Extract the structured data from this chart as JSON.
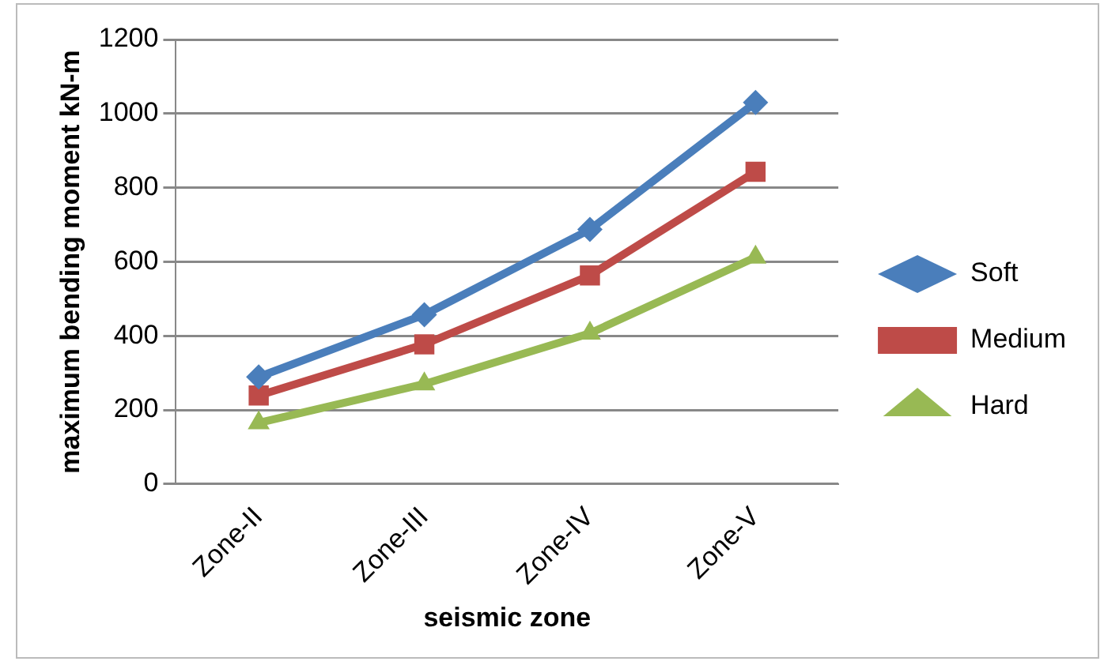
{
  "chart_data": {
    "type": "line",
    "xlabel": "seismic zone",
    "ylabel": "maximum bending moment kN-m",
    "categories": [
      "Zone-II",
      "Zone-III",
      "Zone-IV",
      "Zone-V"
    ],
    "series": [
      {
        "name": "Soft",
        "color": "#4a7ebb",
        "marker": "diamond",
        "values": [
          289,
          457,
          687,
          1030
        ]
      },
      {
        "name": "Medium",
        "color": "#be4b48",
        "marker": "square",
        "values": [
          239,
          377,
          563,
          843
        ]
      },
      {
        "name": "Hard",
        "color": "#98b954",
        "marker": "triangle",
        "values": [
          165,
          270,
          407,
          612
        ]
      }
    ],
    "ylim": [
      0,
      1200
    ],
    "yticks": [
      0,
      200,
      400,
      600,
      800,
      1000,
      1200
    ],
    "grid": "y",
    "legend": "right",
    "line_style": "solid"
  }
}
